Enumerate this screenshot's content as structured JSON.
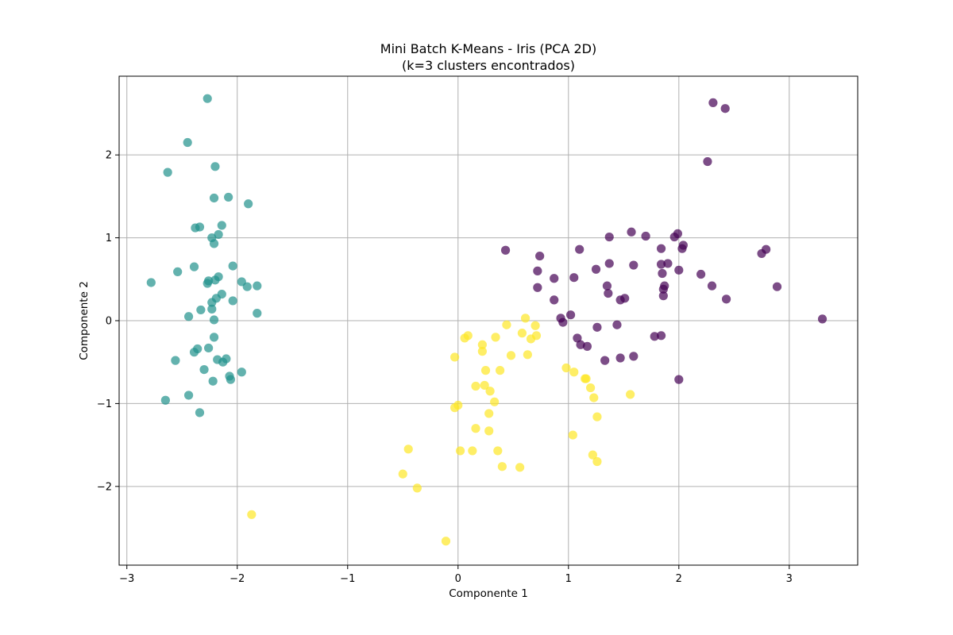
{
  "chart_data": {
    "type": "scatter",
    "title": "Mini Batch K-Means - Iris (PCA 2D)",
    "subtitle": "(k=3 clusters encontrados)",
    "xlabel": "Componente 1",
    "ylabel": "Componente 2",
    "xlim": [
      -3.07,
      3.62
    ],
    "ylim": [
      -2.95,
      2.95
    ],
    "xticks": [
      -3,
      -2,
      -1,
      0,
      1,
      2,
      3
    ],
    "yticks": [
      -2,
      -1,
      0,
      1,
      2
    ],
    "grid": true,
    "colors": {
      "cluster_purple": "#440154",
      "cluster_teal": "#21918c",
      "cluster_yellow": "#fde725"
    },
    "series": [
      {
        "color_key": "cluster_teal",
        "points": [
          [
            -2.27,
            2.68
          ],
          [
            -2.45,
            2.15
          ],
          [
            -2.63,
            1.79
          ],
          [
            -2.2,
            1.86
          ],
          [
            -2.21,
            1.48
          ],
          [
            -2.08,
            1.49
          ],
          [
            -1.9,
            1.41
          ],
          [
            -2.38,
            1.12
          ],
          [
            -2.34,
            1.13
          ],
          [
            -2.14,
            1.15
          ],
          [
            -2.17,
            1.04
          ],
          [
            -2.23,
            1.0
          ],
          [
            -2.21,
            0.93
          ],
          [
            -2.39,
            0.65
          ],
          [
            -2.04,
            0.66
          ],
          [
            -2.54,
            0.59
          ],
          [
            -2.78,
            0.46
          ],
          [
            -2.17,
            0.53
          ],
          [
            -2.2,
            0.49
          ],
          [
            -2.27,
            0.45
          ],
          [
            -2.26,
            0.48
          ],
          [
            -1.96,
            0.47
          ],
          [
            -1.91,
            0.41
          ],
          [
            -1.82,
            0.42
          ],
          [
            -2.14,
            0.32
          ],
          [
            -2.19,
            0.27
          ],
          [
            -2.04,
            0.24
          ],
          [
            -2.23,
            0.22
          ],
          [
            -2.33,
            0.13
          ],
          [
            -2.23,
            0.14
          ],
          [
            -2.44,
            0.05
          ],
          [
            -1.82,
            0.09
          ],
          [
            -2.21,
            0.01
          ],
          [
            -2.21,
            -0.2
          ],
          [
            -2.36,
            -0.34
          ],
          [
            -2.26,
            -0.33
          ],
          [
            -2.39,
            -0.38
          ],
          [
            -2.18,
            -0.47
          ],
          [
            -2.13,
            -0.5
          ],
          [
            -2.1,
            -0.46
          ],
          [
            -2.56,
            -0.48
          ],
          [
            -2.3,
            -0.59
          ],
          [
            -1.96,
            -0.62
          ],
          [
            -2.07,
            -0.67
          ],
          [
            -2.06,
            -0.71
          ],
          [
            -2.22,
            -0.73
          ],
          [
            -2.44,
            -0.9
          ],
          [
            -2.65,
            -0.96
          ],
          [
            -2.34,
            -1.11
          ]
        ]
      },
      {
        "color_key": "cluster_purple",
        "points": [
          [
            2.31,
            2.63
          ],
          [
            2.42,
            2.56
          ],
          [
            2.26,
            1.92
          ],
          [
            1.57,
            1.07
          ],
          [
            1.99,
            1.05
          ],
          [
            1.7,
            1.02
          ],
          [
            1.37,
            1.01
          ],
          [
            1.96,
            1.01
          ],
          [
            2.04,
            0.91
          ],
          [
            2.03,
            0.87
          ],
          [
            1.84,
            0.87
          ],
          [
            0.43,
            0.85
          ],
          [
            1.1,
            0.86
          ],
          [
            2.79,
            0.86
          ],
          [
            2.75,
            0.81
          ],
          [
            0.74,
            0.78
          ],
          [
            1.37,
            0.69
          ],
          [
            1.84,
            0.68
          ],
          [
            1.59,
            0.67
          ],
          [
            1.9,
            0.69
          ],
          [
            0.72,
            0.6
          ],
          [
            1.25,
            0.62
          ],
          [
            1.85,
            0.57
          ],
          [
            2.0,
            0.61
          ],
          [
            2.2,
            0.56
          ],
          [
            0.87,
            0.51
          ],
          [
            1.05,
            0.52
          ],
          [
            1.35,
            0.42
          ],
          [
            1.87,
            0.42
          ],
          [
            0.72,
            0.4
          ],
          [
            1.86,
            0.38
          ],
          [
            2.3,
            0.42
          ],
          [
            2.89,
            0.41
          ],
          [
            1.36,
            0.33
          ],
          [
            1.86,
            0.3
          ],
          [
            0.87,
            0.25
          ],
          [
            1.47,
            0.25
          ],
          [
            1.51,
            0.27
          ],
          [
            2.43,
            0.26
          ],
          [
            0.93,
            0.03
          ],
          [
            0.95,
            -0.02
          ],
          [
            1.02,
            0.07
          ],
          [
            3.3,
            0.02
          ],
          [
            1.26,
            -0.08
          ],
          [
            1.44,
            -0.05
          ],
          [
            1.08,
            -0.21
          ],
          [
            1.78,
            -0.19
          ],
          [
            1.84,
            -0.18
          ],
          [
            1.11,
            -0.29
          ],
          [
            1.17,
            -0.31
          ],
          [
            1.59,
            -0.43
          ],
          [
            1.47,
            -0.45
          ],
          [
            1.33,
            -0.48
          ],
          [
            2.0,
            -0.71
          ]
        ]
      },
      {
        "color_key": "cluster_yellow",
        "points": [
          [
            0.61,
            0.03
          ],
          [
            0.44,
            -0.05
          ],
          [
            0.7,
            -0.06
          ],
          [
            0.58,
            -0.15
          ],
          [
            0.71,
            -0.18
          ],
          [
            0.09,
            -0.18
          ],
          [
            0.34,
            -0.2
          ],
          [
            0.06,
            -0.21
          ],
          [
            0.66,
            -0.22
          ],
          [
            0.22,
            -0.29
          ],
          [
            0.22,
            -0.37
          ],
          [
            -0.03,
            -0.44
          ],
          [
            0.48,
            -0.42
          ],
          [
            0.63,
            -0.41
          ],
          [
            0.98,
            -0.57
          ],
          [
            0.38,
            -0.6
          ],
          [
            0.25,
            -0.6
          ],
          [
            1.05,
            -0.62
          ],
          [
            1.15,
            -0.7
          ],
          [
            1.16,
            -0.7
          ],
          [
            0.16,
            -0.79
          ],
          [
            0.24,
            -0.78
          ],
          [
            0.29,
            -0.85
          ],
          [
            1.2,
            -0.81
          ],
          [
            1.56,
            -0.89
          ],
          [
            1.23,
            -0.93
          ],
          [
            0.33,
            -0.98
          ],
          [
            0.0,
            -1.02
          ],
          [
            -0.03,
            -1.05
          ],
          [
            0.28,
            -1.12
          ],
          [
            1.26,
            -1.16
          ],
          [
            0.16,
            -1.3
          ],
          [
            0.28,
            -1.33
          ],
          [
            1.04,
            -1.38
          ],
          [
            -0.45,
            -1.55
          ],
          [
            0.02,
            -1.57
          ],
          [
            0.13,
            -1.57
          ],
          [
            0.36,
            -1.57
          ],
          [
            1.22,
            -1.62
          ],
          [
            1.26,
            -1.7
          ],
          [
            0.4,
            -1.76
          ],
          [
            0.56,
            -1.77
          ],
          [
            -0.5,
            -1.85
          ],
          [
            -0.37,
            -2.02
          ],
          [
            -1.87,
            -2.34
          ],
          [
            -0.11,
            -2.66
          ]
        ]
      }
    ]
  }
}
